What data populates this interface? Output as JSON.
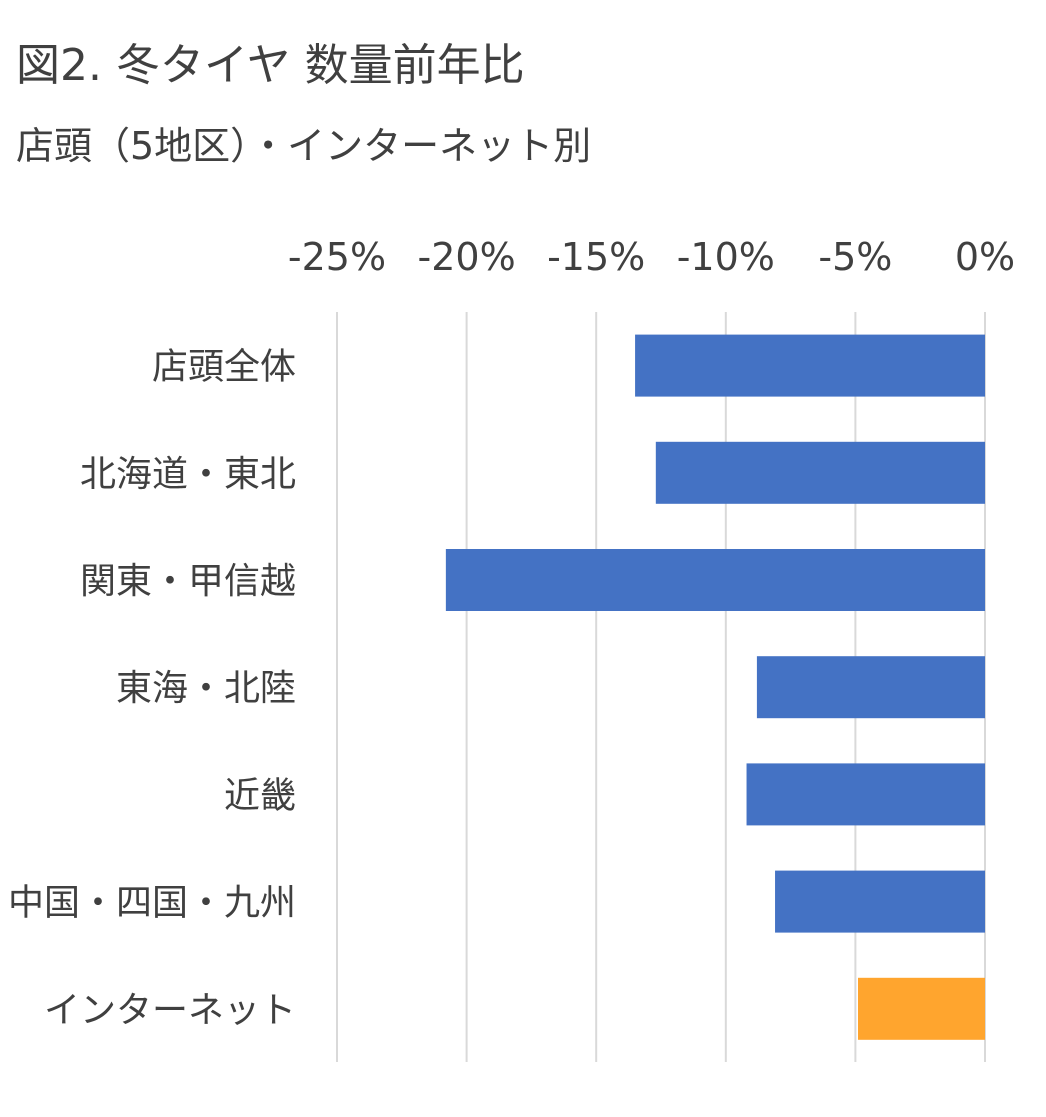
{
  "chart_data": {
    "type": "bar",
    "orientation": "horizontal",
    "title": "図2. 冬タイヤ 数量前年比",
    "subtitle": "店頭（5地区）・インターネット別",
    "categories": [
      "店頭全体",
      "北海道・東北",
      "関東・甲信越",
      "東海・北陸",
      "近畿",
      "中国・四国・九州",
      "インターネット"
    ],
    "values": [
      -13.5,
      -12.7,
      -20.8,
      -8.8,
      -9.2,
      -8.1,
      -4.9
    ],
    "colors": [
      "#4472c4",
      "#4472c4",
      "#4472c4",
      "#4472c4",
      "#4472c4",
      "#4472c4",
      "#ffa52e"
    ],
    "xlim": [
      -25,
      0
    ],
    "xticks": [
      "-25%",
      "-20%",
      "-15%",
      "-10%",
      "-5%",
      "0%"
    ],
    "xtick_values": [
      -25,
      -20,
      -15,
      -10,
      -5,
      0
    ],
    "x_axis_position": "top",
    "grid": true,
    "legend": "none"
  }
}
